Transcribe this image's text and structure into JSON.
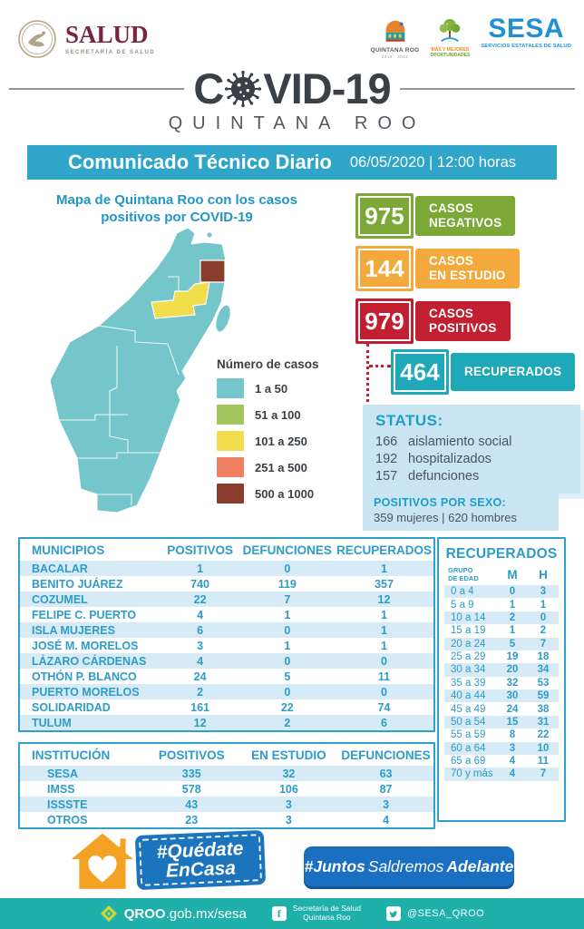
{
  "header": {
    "salud_title": "SALUD",
    "salud_subtitle": "SECRETARÍA DE SALUD",
    "qroo_name": "QUINTANA ROO",
    "qroo_sub": "2016 - 2022",
    "oport_line1": "MÁS Y MEJORES",
    "oport_line2": "OPORTUNIDADES",
    "sesa_name": "SESA",
    "sesa_subtitle": "SERVICIOS ESTATALES DE SALUD",
    "covid_c": "C",
    "covid_rest": "VID-19",
    "covid_subtitle": "QUINTANA ROO"
  },
  "banner": {
    "title": "Comunicado Técnico Diario",
    "datetime": "06/05/2020  |  12:00 horas"
  },
  "theme": {
    "banner_blue": "#2EA5C9",
    "panel_blue": "#C9E5F2",
    "footer_teal": "#20B0AC",
    "badge_blue": "#1B74BC",
    "juntos_blue": "#1A6FC0"
  },
  "map": {
    "title_line1": "Mapa de Quintana Roo con los casos",
    "title_line2": "positivos por COVID-19",
    "legend_title": "Número de casos",
    "legend": [
      {
        "label": "1 a 50",
        "color": "#75C6CA"
      },
      {
        "label": "51 a 100",
        "color": "#A4C45F"
      },
      {
        "label": "101 a 250",
        "color": "#F2DE4D"
      },
      {
        "label": "251 a 500",
        "color": "#EF8162"
      },
      {
        "label": "500 a 1000",
        "color": "#8A3C2D"
      }
    ]
  },
  "stats": [
    {
      "value": "975",
      "label_line1": "CASOS",
      "label_line2": "NEGATIVOS",
      "color": "#7CA837"
    },
    {
      "value": "144",
      "label_line1": "CASOS",
      "label_line2": "EN ESTUDIO",
      "color": "#F3A93B"
    },
    {
      "value": "979",
      "label_line1": "CASOS",
      "label_line2": "POSITIVOS",
      "color": "#C22031"
    }
  ],
  "recovered": {
    "value": "464",
    "label": "RECUPERADOS",
    "color": "#1FA9B8"
  },
  "status": {
    "title": "STATUS:",
    "items": [
      {
        "value": "166",
        "label": "aislamiento social"
      },
      {
        "value": "192",
        "label": "hospitalizados"
      },
      {
        "value": "157",
        "label": "defunciones"
      }
    ]
  },
  "sexo": {
    "title": "POSITIVOS POR SEXO:",
    "text": "359 mujeres  |  620 hombres"
  },
  "municipios": {
    "headers": [
      "MUNICIPIOS",
      "POSITIVOS",
      "DEFUNCIONES",
      "RECUPERADOS"
    ],
    "rows": [
      [
        "BACALAR",
        "1",
        "0",
        "1"
      ],
      [
        "BENITO JUÁREZ",
        "740",
        "119",
        "357"
      ],
      [
        "COZUMEL",
        "22",
        "7",
        "12"
      ],
      [
        "FELIPE C. PUERTO",
        "4",
        "1",
        "1"
      ],
      [
        "ISLA MUJERES",
        "6",
        "0",
        "1"
      ],
      [
        "JOSÉ M. MORELOS",
        "3",
        "1",
        "1"
      ],
      [
        "LÁZARO CÁRDENAS",
        "4",
        "0",
        "0"
      ],
      [
        "OTHÓN P. BLANCO",
        "24",
        "5",
        "11"
      ],
      [
        "PUERTO MORELOS",
        "2",
        "0",
        "0"
      ],
      [
        "SOLIDARIDAD",
        "161",
        "22",
        "74"
      ],
      [
        "TULUM",
        "12",
        "2",
        "6"
      ]
    ]
  },
  "institucion": {
    "headers": [
      "INSTITUCIÓN",
      "POSITIVOS",
      "EN ESTUDIO",
      "DEFUNCIONES"
    ],
    "rows": [
      [
        "SESA",
        "335",
        "32",
        "63"
      ],
      [
        "IMSS",
        "578",
        "106",
        "87"
      ],
      [
        "ISSSTE",
        "43",
        "3",
        "3"
      ],
      [
        "OTROS",
        "23",
        "3",
        "4"
      ]
    ]
  },
  "edad": {
    "title": "RECUPERADOS",
    "header_group1": "GRUPO",
    "header_group2": "DE EDAD",
    "header_m": "M",
    "header_h": "H",
    "rows": [
      [
        "0 a 4",
        "0",
        "3"
      ],
      [
        "5 a 9",
        "1",
        "1"
      ],
      [
        "10 a 14",
        "2",
        "0"
      ],
      [
        "15 a 19",
        "1",
        "2"
      ],
      [
        "20 a 24",
        "5",
        "7"
      ],
      [
        "25 a 29",
        "19",
        "18"
      ],
      [
        "30 a 34",
        "20",
        "34"
      ],
      [
        "35 a 39",
        "32",
        "53"
      ],
      [
        "40 a 44",
        "30",
        "59"
      ],
      [
        "45 a 49",
        "24",
        "38"
      ],
      [
        "50 a 54",
        "15",
        "31"
      ],
      [
        "55 a 59",
        "8",
        "22"
      ],
      [
        "60 a 64",
        "3",
        "10"
      ],
      [
        "65 a 69",
        "4",
        "11"
      ],
      [
        "70 y más",
        "4",
        "7"
      ]
    ]
  },
  "badges": {
    "quedate_line1": "#Quédate",
    "quedate_line2": "EnCasa",
    "juntos_part1": "#Juntos",
    "juntos_part2": "Saldremos",
    "juntos_part3": "Adelante"
  },
  "footer": {
    "site_bold": "QROO",
    "site_rest": ".gob.mx/sesa",
    "fb_line1": "Secretaría de Salud",
    "fb_line2": "Quintana Roo",
    "twitter": "@SESA_QROO"
  }
}
